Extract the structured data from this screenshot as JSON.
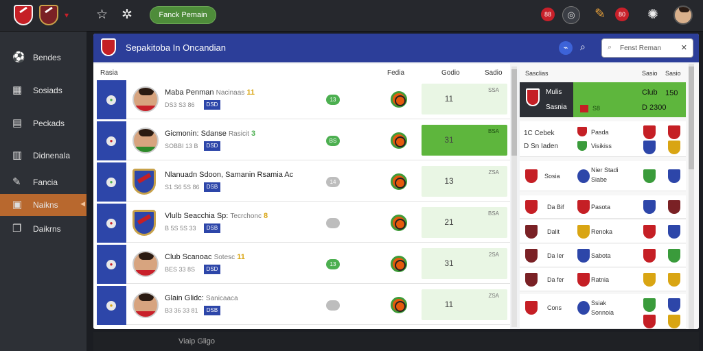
{
  "topbar": {
    "pill_label": "Fanck Pemain",
    "badge_left": "88",
    "badge_right": "80"
  },
  "sidebar": {
    "items": [
      {
        "label": "Bendes",
        "icon": "ball-icon"
      },
      {
        "label": "Sosiads",
        "icon": "grid-icon"
      },
      {
        "label": "Peckads",
        "icon": "chart-icon"
      },
      {
        "label": "Didnenala",
        "icon": "calendar-icon"
      },
      {
        "label": "Fancia",
        "icon": "pencil-icon"
      },
      {
        "label": "Naikns",
        "icon": "tag-icon",
        "active": true
      },
      {
        "label": "Daikrns",
        "icon": "copy-icon"
      }
    ]
  },
  "panel": {
    "title": "Sepakitoba In Oncandian",
    "search_value": "Fenst Reman"
  },
  "list_headers": {
    "c1": "Rasia",
    "c2": "Fedia",
    "c3": "Godio",
    "c4": "Sadio"
  },
  "rows": [
    {
      "dot": "●",
      "name": "Maba Penman",
      "extra": "Nacinaas",
      "num": "11",
      "sub": "DS3 S3 86",
      "tag": "DSD",
      "g": "13",
      "score": "11",
      "tt": "SSA",
      "kind": "photo"
    },
    {
      "dot": "●",
      "name": "Gicmonin: Sdanse",
      "extra": "Rasicit",
      "num": "3",
      "sub": "SOBBI 13 B",
      "tag": "DSD",
      "g": "BS",
      "score": "31",
      "tt": "BSA",
      "kind": "photo-g"
    },
    {
      "dot": "●",
      "name": "Nlanuadn Sdoon, Samanin Rsamia Ac",
      "extra": "",
      "num": "",
      "sub": "S1 S6 5S 86",
      "tag": "DSB",
      "g": "14",
      "score": "13",
      "tt": "ZSA",
      "kind": "shield"
    },
    {
      "dot": "●",
      "name": "Vlulb Seacchia Sp:",
      "extra": "Tecrchonc",
      "num": "8",
      "sub": "B 5S 5S 33",
      "tag": "DSB",
      "g": "",
      "score": "21",
      "tt": "BSA",
      "kind": "shield"
    },
    {
      "dot": "●",
      "name": "Club Scanoac",
      "extra": "Sotesc",
      "num": "11",
      "sub": "BES 33 8S",
      "tag": "DSD",
      "g": "13",
      "score": "31",
      "tt": "2SA",
      "kind": "photo"
    },
    {
      "dot": "●",
      "name": "Glain Glidc:",
      "extra": "Sanicaaca",
      "num": "",
      "sub": "B3 36 33 81",
      "tag": "DSB",
      "g": "",
      "score": "11",
      "tt": "ZSA",
      "kind": "photo"
    }
  ],
  "right_headers": {
    "a": "Sasclias",
    "b": "Sasio",
    "c": "Sasio"
  },
  "featured": {
    "name": "Mulis",
    "sub": "Sasnia",
    "club": "Club",
    "num": "150",
    "score": "D 2300",
    "mid": "S8"
  },
  "matches": [
    {
      "l1": "1C Cebek",
      "l2": "D Sn Iaden",
      "r1": "Pasda",
      "r2": "Visikiss"
    },
    {
      "l1": "Sosia",
      "l2": "",
      "r1": "Nier Stadi",
      "r2": "Siabe"
    },
    {
      "l1": "Da Bif",
      "l2": "",
      "r1": "Pasota",
      "r2": ""
    },
    {
      "l1": "Dalit",
      "l2": "",
      "r1": "Renoka",
      "r2": ""
    },
    {
      "l1": "Da Ier",
      "l2": "",
      "r1": "Sabota",
      "r2": ""
    },
    {
      "l1": "Da fer",
      "l2": "",
      "r1": "Ratnia",
      "r2": ""
    },
    {
      "l1": "Cons",
      "l2": "",
      "r1": "Ssiak",
      "r2": "Sonnoia"
    }
  ],
  "bottom_row_text": "Viaip Gligo"
}
